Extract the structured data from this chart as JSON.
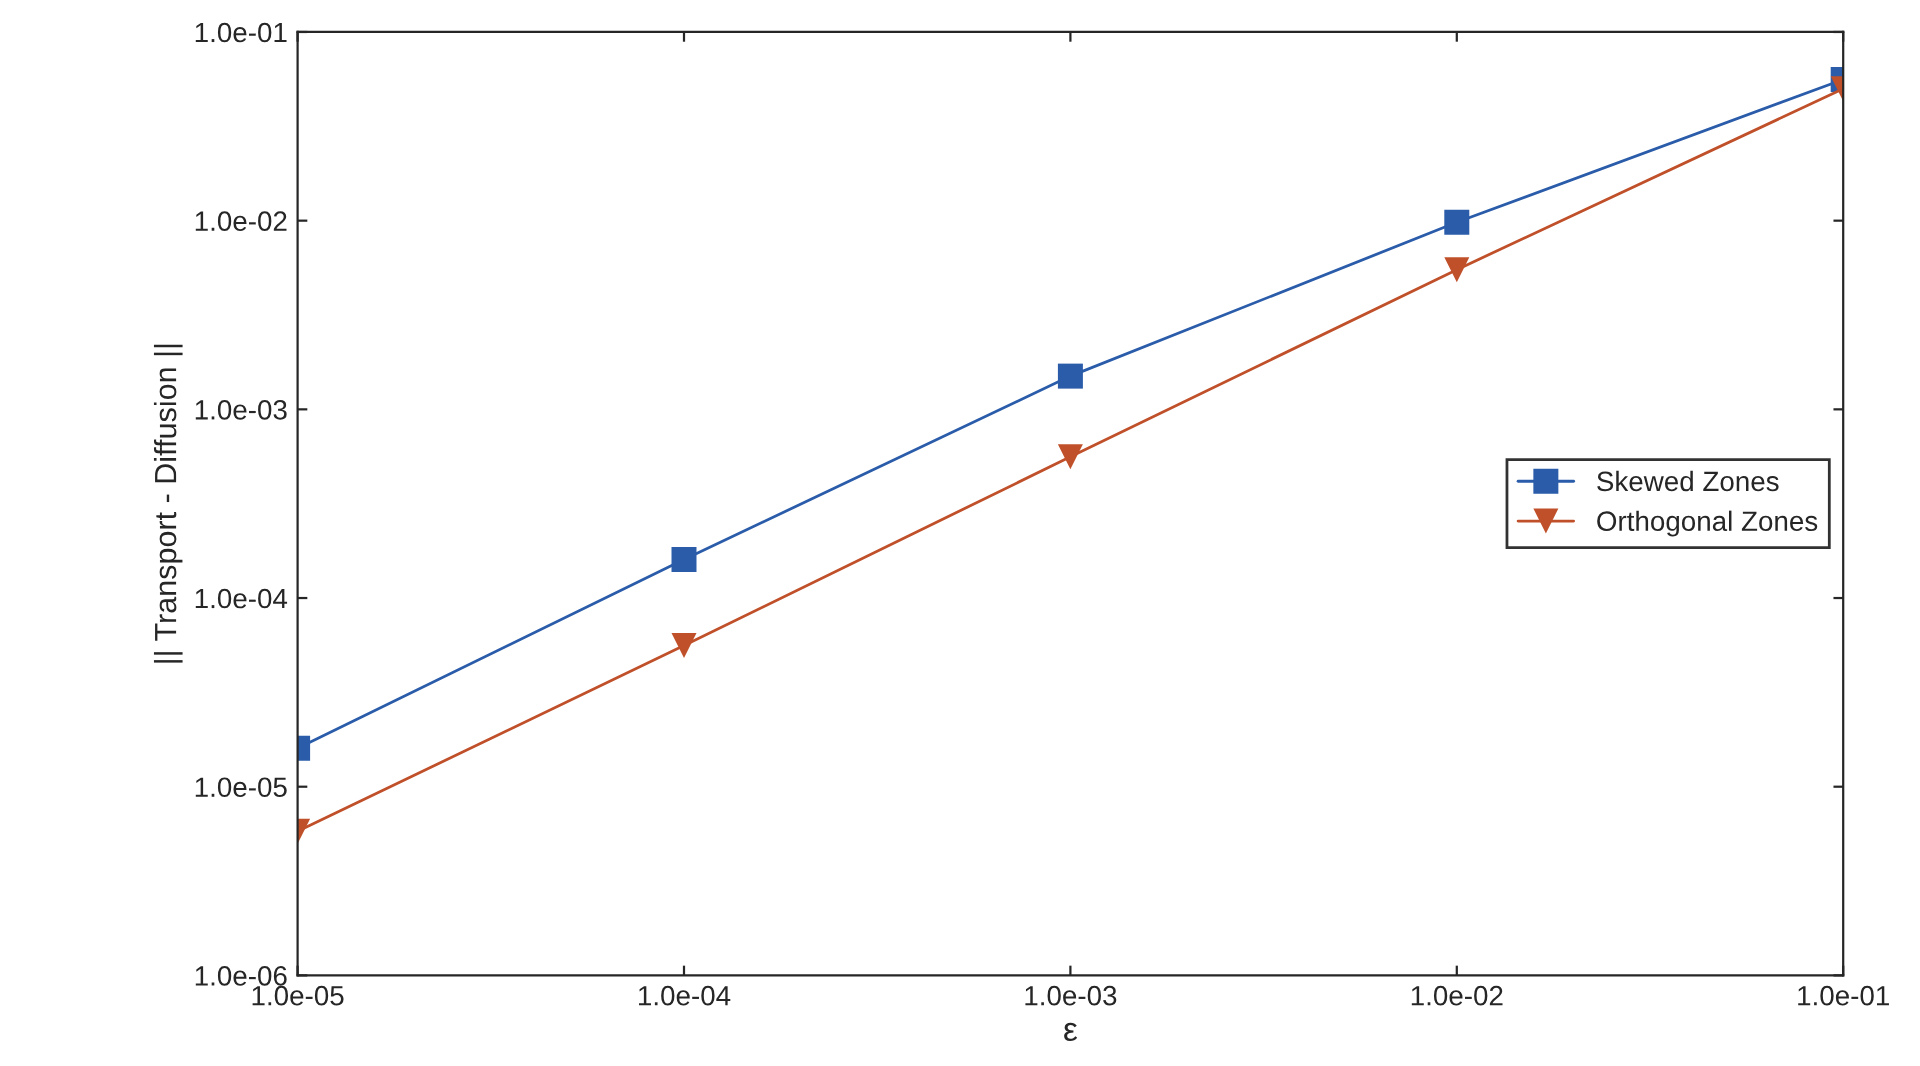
{
  "chart_data": {
    "type": "line",
    "xlabel": "ε",
    "ylabel": "|| Transport - Diffusion ||",
    "log": "xy",
    "x": [
      1e-05,
      0.0001,
      0.001,
      0.01,
      0.1
    ],
    "xlim": [
      1e-05,
      0.1
    ],
    "ylim": [
      1e-06,
      0.1
    ],
    "xticks": [
      {
        "value": 1e-05,
        "label": "1.0e-05"
      },
      {
        "value": 0.0001,
        "label": "1.0e-04"
      },
      {
        "value": 0.001,
        "label": "1.0e-03"
      },
      {
        "value": 0.01,
        "label": "1.0e-02"
      },
      {
        "value": 0.1,
        "label": "1.0e-01"
      }
    ],
    "yticks": [
      {
        "value": 1e-06,
        "label": "1.0e-06"
      },
      {
        "value": 1e-05,
        "label": "1.0e-05"
      },
      {
        "value": 0.0001,
        "label": "1.0e-04"
      },
      {
        "value": 0.001,
        "label": "1.0e-03"
      },
      {
        "value": 0.01,
        "label": "1.0e-02"
      },
      {
        "value": 0.1,
        "label": "1.0e-01"
      }
    ],
    "legend": "center right",
    "grid": false,
    "series": [
      {
        "name": "Skewed Zones",
        "color": "#2a5caa",
        "marker": "square",
        "values": [
          1.6e-05,
          0.00016,
          0.0015,
          0.0098,
          0.056
        ]
      },
      {
        "name": "Orthogonal Zones",
        "color": "#c0502a",
        "marker": "triangle",
        "values": [
          5.8e-06,
          5.6e-05,
          0.00056,
          0.0055,
          0.05
        ]
      }
    ]
  }
}
